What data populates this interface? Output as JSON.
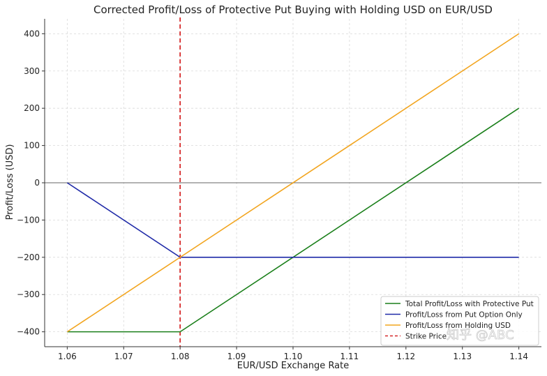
{
  "chart_data": {
    "type": "line",
    "title": "Corrected Profit/Loss of Protective Put Buying with Holding USD on EUR/USD",
    "xlabel": "EUR/USD Exchange Rate",
    "ylabel": "Profit/Loss (USD)",
    "xlim": [
      1.056,
      1.144
    ],
    "ylim": [
      -440,
      440
    ],
    "xticks": [
      1.06,
      1.07,
      1.08,
      1.09,
      1.1,
      1.11,
      1.12,
      1.13,
      1.14
    ],
    "xtick_labels": [
      "1.06",
      "1.07",
      "1.08",
      "1.09",
      "1.10",
      "1.11",
      "1.12",
      "1.13",
      "1.14"
    ],
    "yticks": [
      -400,
      -300,
      -200,
      -100,
      0,
      100,
      200,
      300,
      400
    ],
    "ytick_labels": [
      "−400",
      "−300",
      "−200",
      "−100",
      "0",
      "100",
      "200",
      "300",
      "400"
    ],
    "grid": true,
    "legend_position": "lower-right",
    "series": [
      {
        "name": "Total Profit/Loss with Protective Put",
        "color": "#1a7f1a",
        "x": [
          1.06,
          1.08,
          1.14
        ],
        "y": [
          -400,
          -400,
          200
        ]
      },
      {
        "name": "Profit/Loss from Put Option Only",
        "color": "#1f2aa8",
        "x": [
          1.06,
          1.08,
          1.14
        ],
        "y": [
          0,
          -200,
          -200
        ]
      },
      {
        "name": "Profit/Loss from Holding USD",
        "color": "#f2a51f",
        "x": [
          1.06,
          1.14
        ],
        "y": [
          -400,
          400
        ]
      }
    ],
    "reference_lines": [
      {
        "name": "Strike Price",
        "orientation": "vertical",
        "x": 1.08,
        "color": "#d62728",
        "style": "dashed"
      },
      {
        "name": "",
        "orientation": "horizontal",
        "y": 0,
        "color": "#666666",
        "style": "solid"
      }
    ]
  },
  "watermark": {
    "text": "知乎 @ABC"
  }
}
